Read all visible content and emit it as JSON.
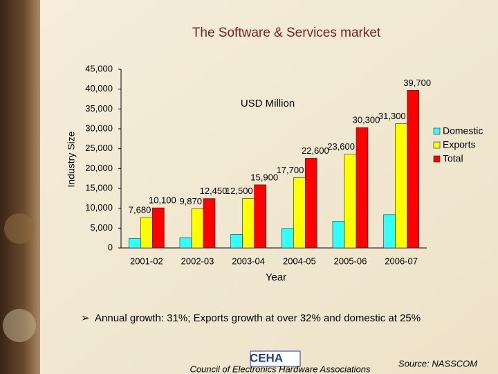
{
  "chart_data": {
    "type": "bar",
    "title": "The Software & Services market",
    "annotation": "USD Million",
    "ylabel": "Industry Size",
    "xlabel": "Year",
    "categories": [
      "2001-02",
      "2002-03",
      "2003-04",
      "2004-05",
      "2005-06",
      "2006-07"
    ],
    "series": [
      {
        "name": "Domestic",
        "color": "#33ffff",
        "values": [
          2400,
          2600,
          3400,
          4900,
          6700,
          8400
        ]
      },
      {
        "name": "Exports",
        "color": "#ffff00",
        "values": [
          7680,
          9870,
          12500,
          17700,
          23600,
          31300
        ],
        "value_labels": [
          "7,680",
          "9,870",
          "12,500",
          "17,700",
          "23,600",
          "31,300"
        ]
      },
      {
        "name": "Total",
        "color": "#ff0000",
        "values": [
          10100,
          12450,
          15900,
          22600,
          30300,
          39700
        ],
        "value_labels": [
          "10,100",
          "12,450",
          "15,900",
          "22,600",
          "30,300",
          "39,700"
        ]
      }
    ],
    "ylim": [
      0,
      45000
    ],
    "yticks": [
      0,
      {
        "value": 5000,
        "label": "5,000"
      },
      {
        "value": 10000,
        "label": "10,000"
      },
      {
        "value": 15000,
        "label": "15,000"
      },
      {
        "value": 20000,
        "label": "20,000"
      },
      {
        "value": 25000,
        "label": "25,000"
      },
      {
        "value": 30000,
        "label": "30,000"
      },
      {
        "value": 35000,
        "label": "35,000"
      },
      {
        "value": 40000,
        "label": "40,000"
      },
      {
        "value": 45000,
        "label": "45,000"
      }
    ],
    "grid": false,
    "legend": "right"
  },
  "slide": {
    "bullet": "Annual growth: 31%; Exports growth at over 32% and domestic at 25%",
    "logo": "CEHA",
    "footer": "Council of Electronics Hardware Associations",
    "source": "Source: NASSCOM"
  }
}
